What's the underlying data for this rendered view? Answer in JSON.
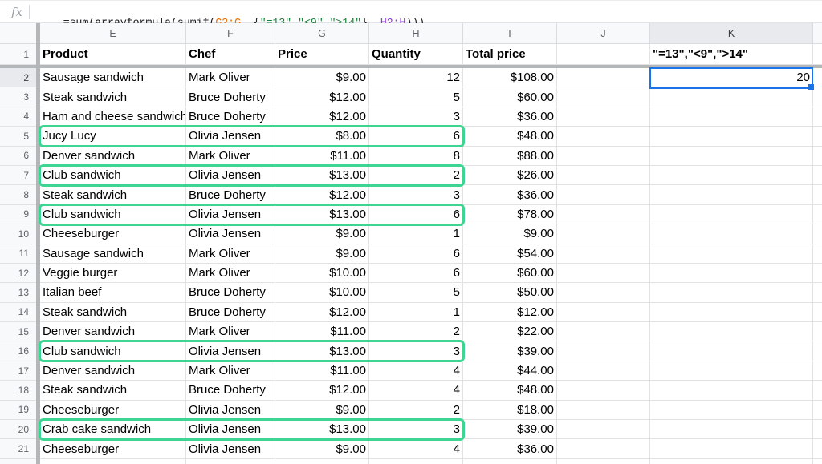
{
  "colors": {
    "highlight_green": "#3ed492",
    "selection_blue": "#1a73e8"
  },
  "formula_bar": {
    "fx_label": "fx",
    "segments": [
      {
        "text": "=sum(arrayformula(sumif(",
        "color": "#202124"
      },
      {
        "text": "G2:G",
        "color": "#e8710a"
      },
      {
        "text": ", {",
        "color": "#202124"
      },
      {
        "text": "\"=13\",\"<9\",\">14\"",
        "color": "#188038"
      },
      {
        "text": "}, ",
        "color": "#202124"
      },
      {
        "text": "H2:H",
        "color": "#9334e6"
      },
      {
        "text": ")))",
        "color": "#202124"
      }
    ]
  },
  "sheet": {
    "columns": [
      {
        "letter": "E",
        "key": "e",
        "selected": false
      },
      {
        "letter": "F",
        "key": "f",
        "selected": false
      },
      {
        "letter": "G",
        "key": "g",
        "selected": false
      },
      {
        "letter": "H",
        "key": "h",
        "selected": false
      },
      {
        "letter": "I",
        "key": "i",
        "selected": false
      },
      {
        "letter": "J",
        "key": "j",
        "selected": false
      },
      {
        "letter": "K",
        "key": "k",
        "selected": true
      }
    ],
    "frozen_row": {
      "n": "1",
      "e": "Product",
      "f": "Chef",
      "g": "Price",
      "h": "Quantity",
      "i": "Total price",
      "j": "",
      "k": "\"=13\",\"<9\",\">14\""
    },
    "selection": {
      "cell": "K2",
      "value": "20"
    },
    "highlighted_row_numbers": [
      5,
      7,
      9,
      16,
      20
    ],
    "rows": [
      {
        "n": "2",
        "e": "Sausage sandwich",
        "f": "Mark Oliver",
        "g": "$9.00",
        "h": "12",
        "i": "$108.00",
        "k": "20",
        "hl": false,
        "sel": true
      },
      {
        "n": "3",
        "e": "Steak sandwich",
        "f": "Bruce Doherty",
        "g": "$12.00",
        "h": "5",
        "i": "$60.00",
        "k": "",
        "hl": false,
        "sel": false
      },
      {
        "n": "4",
        "e": "Ham and cheese sandwich",
        "f": "Bruce Doherty",
        "g": "$12.00",
        "h": "3",
        "i": "$36.00",
        "k": "",
        "hl": false,
        "sel": false
      },
      {
        "n": "5",
        "e": "Jucy Lucy",
        "f": "Olivia Jensen",
        "g": "$8.00",
        "h": "6",
        "i": "$48.00",
        "k": "",
        "hl": true,
        "sel": false
      },
      {
        "n": "6",
        "e": "Denver sandwich",
        "f": "Mark Oliver",
        "g": "$11.00",
        "h": "8",
        "i": "$88.00",
        "k": "",
        "hl": false,
        "sel": false
      },
      {
        "n": "7",
        "e": "Club sandwich",
        "f": "Olivia Jensen",
        "g": "$13.00",
        "h": "2",
        "i": "$26.00",
        "k": "",
        "hl": true,
        "sel": false
      },
      {
        "n": "8",
        "e": "Steak sandwich",
        "f": "Bruce Doherty",
        "g": "$12.00",
        "h": "3",
        "i": "$36.00",
        "k": "",
        "hl": false,
        "sel": false
      },
      {
        "n": "9",
        "e": "Club sandwich",
        "f": "Olivia Jensen",
        "g": "$13.00",
        "h": "6",
        "i": "$78.00",
        "k": "",
        "hl": true,
        "sel": false
      },
      {
        "n": "10",
        "e": "Cheeseburger",
        "f": "Olivia Jensen",
        "g": "$9.00",
        "h": "1",
        "i": "$9.00",
        "k": "",
        "hl": false,
        "sel": false
      },
      {
        "n": "11",
        "e": "Sausage sandwich",
        "f": "Mark Oliver",
        "g": "$9.00",
        "h": "6",
        "i": "$54.00",
        "k": "",
        "hl": false,
        "sel": false
      },
      {
        "n": "12",
        "e": "Veggie burger",
        "f": "Mark Oliver",
        "g": "$10.00",
        "h": "6",
        "i": "$60.00",
        "k": "",
        "hl": false,
        "sel": false
      },
      {
        "n": "13",
        "e": "Italian beef",
        "f": "Bruce Doherty",
        "g": "$10.00",
        "h": "5",
        "i": "$50.00",
        "k": "",
        "hl": false,
        "sel": false
      },
      {
        "n": "14",
        "e": "Steak sandwich",
        "f": "Bruce Doherty",
        "g": "$12.00",
        "h": "1",
        "i": "$12.00",
        "k": "",
        "hl": false,
        "sel": false
      },
      {
        "n": "15",
        "e": "Denver sandwich",
        "f": "Mark Oliver",
        "g": "$11.00",
        "h": "2",
        "i": "$22.00",
        "k": "",
        "hl": false,
        "sel": false
      },
      {
        "n": "16",
        "e": "Club sandwich",
        "f": "Olivia Jensen",
        "g": "$13.00",
        "h": "3",
        "i": "$39.00",
        "k": "",
        "hl": true,
        "sel": false
      },
      {
        "n": "17",
        "e": "Denver sandwich",
        "f": "Mark Oliver",
        "g": "$11.00",
        "h": "4",
        "i": "$44.00",
        "k": "",
        "hl": false,
        "sel": false
      },
      {
        "n": "18",
        "e": "Steak sandwich",
        "f": "Bruce Doherty",
        "g": "$12.00",
        "h": "4",
        "i": "$48.00",
        "k": "",
        "hl": false,
        "sel": false
      },
      {
        "n": "19",
        "e": "Cheeseburger",
        "f": "Olivia Jensen",
        "g": "$9.00",
        "h": "2",
        "i": "$18.00",
        "k": "",
        "hl": false,
        "sel": false
      },
      {
        "n": "20",
        "e": "Crab cake sandwich",
        "f": "Olivia Jensen",
        "g": "$13.00",
        "h": "3",
        "i": "$39.00",
        "k": "",
        "hl": true,
        "sel": false
      },
      {
        "n": "21",
        "e": "Cheeseburger",
        "f": "Olivia Jensen",
        "g": "$9.00",
        "h": "4",
        "i": "$36.00",
        "k": "",
        "hl": false,
        "sel": false
      }
    ]
  }
}
